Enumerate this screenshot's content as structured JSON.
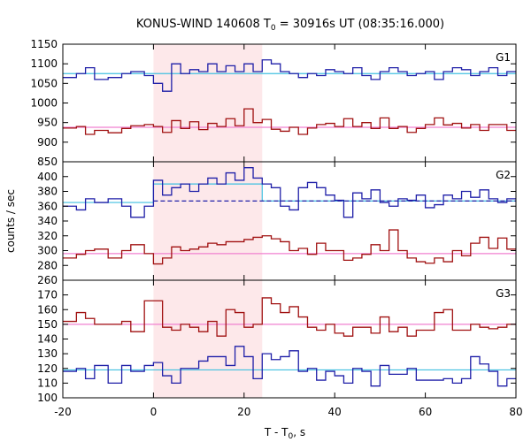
{
  "chart_data": {
    "type": "line",
    "title_main": "KONUS-WIND 140608 T",
    "title_sub": "0",
    "title_rest": " = 30916s UT (08:35:16.000)",
    "xlabel_main": "T - T",
    "xlabel_sub": "0",
    "xlabel_rest": ", s",
    "ylabel": "counts / sec",
    "xlim": [
      -20,
      80
    ],
    "xticks": [
      "-20",
      "0",
      "20",
      "40",
      "60",
      "80"
    ],
    "shaded_interval": [
      0,
      24
    ],
    "colors": {
      "blue": "#1f1fa8",
      "red": "#a01010",
      "cyan": "#40c0e0",
      "pink": "#f080d0",
      "shade": "#fde8ea"
    },
    "bin_edges": [
      -20,
      -17,
      -15,
      -13,
      -10,
      -7,
      -5,
      -2,
      0,
      2,
      4,
      6,
      8,
      10,
      12,
      14,
      16,
      18,
      20,
      22,
      24,
      26,
      28,
      30,
      32,
      34,
      36,
      38,
      40,
      42,
      44,
      46,
      48,
      50,
      52,
      54,
      56,
      58,
      60,
      62,
      64,
      66,
      68,
      70,
      72,
      74,
      76,
      78,
      80
    ],
    "panels": [
      {
        "label": "G1",
        "ylim": [
          850,
          1150
        ],
        "yticks": [
          "850",
          "900",
          "950",
          "1000",
          "1050",
          "1100",
          "1150"
        ],
        "background_high": 1075,
        "background_low": 938,
        "series": [
          {
            "name": "",
            "color": "blue",
            "values": [
              1065,
              1075,
              1090,
              1060,
              1065,
              1075,
              1080,
              1070,
              1050,
              1030,
              1100,
              1075,
              1085,
              1080,
              1100,
              1080,
              1095,
              1080,
              1100,
              1080,
              1110,
              1100,
              1080,
              1075,
              1065,
              1075,
              1070,
              1085,
              1080,
              1075,
              1090,
              1070,
              1060,
              1080,
              1090,
              1080,
              1070,
              1075,
              1080,
              1060,
              1080,
              1090,
              1085,
              1070,
              1080,
              1090,
              1070,
              1080
            ]
          },
          {
            "name": "",
            "color": "red",
            "values": [
              936,
              940,
              920,
              930,
              924,
              935,
              942,
              945,
              940,
              925,
              955,
              935,
              952,
              932,
              948,
              940,
              960,
              942,
              985,
              950,
              958,
              933,
              928,
              938,
              920,
              936,
              945,
              948,
              940,
              960,
              940,
              950,
              935,
              962,
              935,
              940,
              925,
              935,
              945,
              962,
              944,
              948,
              936,
              945,
              930,
              945,
              945,
              930
            ]
          }
        ]
      },
      {
        "label": "G2",
        "ylim": [
          260,
          420
        ],
        "yticks": [
          "260",
          "280",
          "300",
          "320",
          "340",
          "360",
          "380",
          "400"
        ],
        "background_high_pre": 365,
        "background_high_post": 367,
        "background_high_step": 390,
        "background_high_step_end": 24,
        "background_low": 296,
        "series": [
          {
            "name": "",
            "color": "blue",
            "values": [
              360,
              355,
              370,
              365,
              370,
              360,
              345,
              360,
              395,
              375,
              385,
              390,
              380,
              390,
              398,
              390,
              405,
              395,
              412,
              398,
              390,
              385,
              360,
              355,
              385,
              392,
              385,
              375,
              368,
              345,
              378,
              370,
              382,
              365,
              360,
              370,
              368,
              375,
              358,
              362,
              375,
              370,
              380,
              372,
              382,
              370,
              365,
              370
            ]
          },
          {
            "name": "",
            "color": "red",
            "values": [
              290,
              295,
              300,
              302,
              290,
              300,
              308,
              296,
              282,
              290,
              305,
              300,
              302,
              305,
              310,
              308,
              312,
              312,
              315,
              318,
              320,
              316,
              312,
              300,
              303,
              295,
              310,
              300,
              300,
              287,
              290,
              295,
              308,
              300,
              328,
              300,
              290,
              285,
              283,
              290,
              285,
              300,
              293,
              310,
              318,
              303,
              317,
              302
            ]
          }
        ]
      },
      {
        "label": "G3",
        "ylim": [
          100,
          180
        ],
        "yticks": [
          "100",
          "110",
          "120",
          "130",
          "140",
          "150",
          "160",
          "170"
        ],
        "background_high": 150,
        "background_low": 119,
        "series": [
          {
            "name": "",
            "color": "red",
            "values": [
              152,
              158,
              154,
              150,
              150,
              152,
              145,
              166,
              166,
              148,
              146,
              150,
              148,
              145,
              152,
              142,
              160,
              158,
              148,
              150,
              168,
              164,
              158,
              162,
              155,
              148,
              146,
              150,
              144,
              142,
              148,
              148,
              144,
              155,
              145,
              148,
              142,
              146,
              146,
              158,
              160,
              146,
              146,
              150,
              148,
              147,
              148,
              150
            ]
          },
          {
            "name": "",
            "color": "blue",
            "values": [
              118,
              120,
              113,
              122,
              110,
              122,
              118,
              122,
              124,
              115,
              110,
              120,
              120,
              125,
              128,
              128,
              122,
              135,
              128,
              113,
              130,
              126,
              128,
              132,
              118,
              120,
              112,
              118,
              115,
              110,
              120,
              118,
              108,
              122,
              116,
              116,
              120,
              112,
              112,
              112,
              113,
              110,
              113,
              128,
              123,
              118,
              108,
              113
            ]
          }
        ]
      }
    ]
  }
}
